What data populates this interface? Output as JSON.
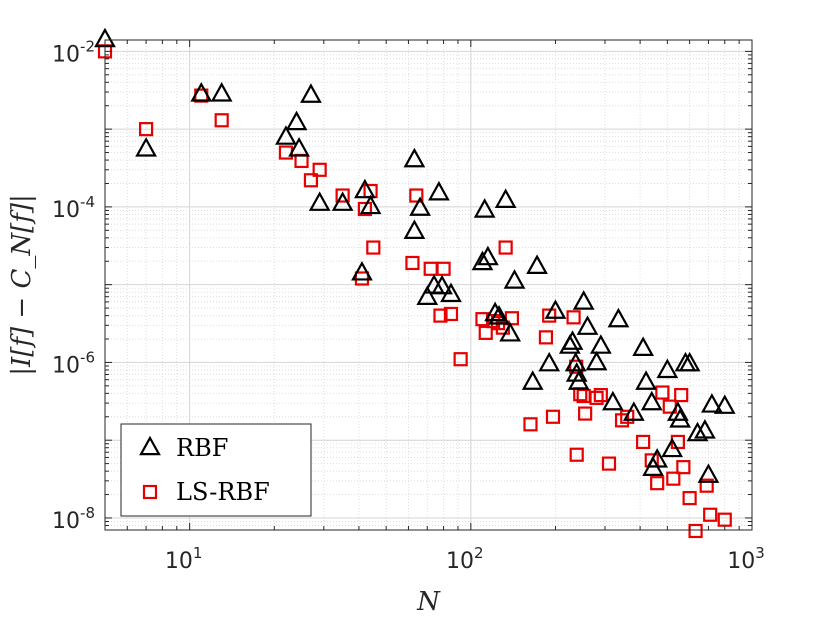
{
  "chart_data": {
    "type": "scatter",
    "xscale": "log",
    "yscale": "log",
    "xlim": [
      5,
      1000
    ],
    "ylim": [
      7e-09,
      0.014
    ],
    "xticks": [
      10,
      100,
      1000
    ],
    "xtick_labels": [
      {
        "base": "10",
        "exp": "1"
      },
      {
        "base": "10",
        "exp": "2"
      },
      {
        "base": "10",
        "exp": "3"
      }
    ],
    "yticks": [
      1e-08,
      1e-06,
      0.0001,
      0.01
    ],
    "ytick_labels": [
      {
        "base": "10",
        "exp": "-8"
      },
      {
        "base": "10",
        "exp": "-6"
      },
      {
        "base": "10",
        "exp": "-4"
      },
      {
        "base": "10",
        "exp": "-2"
      }
    ],
    "xlabel": "N",
    "ylabel": "|I[f] − C_N[f]|",
    "grid": true,
    "legend_position": "bottom-left",
    "series": [
      {
        "name": "RBF",
        "marker": "triangle",
        "color": "#000000",
        "points": [
          [
            5,
            0.014
          ],
          [
            7,
            0.00055
          ],
          [
            11,
            0.0028
          ],
          [
            13,
            0.0028
          ],
          [
            22,
            0.00078
          ],
          [
            24,
            0.0012
          ],
          [
            24.5,
            0.00055
          ],
          [
            27,
            0.0027
          ],
          [
            29,
            0.00011
          ],
          [
            35,
            0.00011
          ],
          [
            41,
            1.4e-05
          ],
          [
            42,
            0.00016
          ],
          [
            44,
            0.0001
          ],
          [
            63,
            0.0004
          ],
          [
            63,
            4.8e-05
          ],
          [
            66,
            9.5e-05
          ],
          [
            70,
            6.8e-06
          ],
          [
            74,
            9.5e-06
          ],
          [
            77,
            0.00015
          ],
          [
            79,
            9.3e-06
          ],
          [
            85,
            7.4e-06
          ],
          [
            110,
            1.9e-05
          ],
          [
            112,
            9e-05
          ],
          [
            115,
            2.2e-05
          ],
          [
            122,
            4.2e-06
          ],
          [
            126,
            3.8e-06
          ],
          [
            133,
            0.00012
          ],
          [
            138,
            2.3e-06
          ],
          [
            143,
            1.1e-05
          ],
          [
            166,
            5.5e-07
          ],
          [
            172,
            1.7e-05
          ],
          [
            190,
            9.5e-07
          ],
          [
            200,
            4.5e-06
          ],
          [
            225,
            1.6e-06
          ],
          [
            230,
            1.8e-06
          ],
          [
            236,
            9.5e-07
          ],
          [
            238,
            7e-07
          ],
          [
            242,
            5.5e-07
          ],
          [
            252,
            5.9e-06
          ],
          [
            260,
            2.8e-06
          ],
          [
            280,
            9.8e-07
          ],
          [
            290,
            1.6e-06
          ],
          [
            320,
            3e-07
          ],
          [
            335,
            3.5e-06
          ],
          [
            380,
            2.2e-07
          ],
          [
            410,
            1.5e-06
          ],
          [
            420,
            5.5e-07
          ],
          [
            440,
            3e-07
          ],
          [
            445,
            4.3e-08
          ],
          [
            460,
            5.5e-08
          ],
          [
            500,
            7.8e-07
          ],
          [
            520,
            7.5e-08
          ],
          [
            545,
            2.2e-07
          ],
          [
            555,
            1.8e-07
          ],
          [
            580,
            9.5e-07
          ],
          [
            600,
            9.5e-07
          ],
          [
            640,
            1.2e-07
          ],
          [
            680,
            1.3e-07
          ],
          [
            700,
            3.5e-08
          ],
          [
            720,
            2.8e-07
          ],
          [
            800,
            2.7e-07
          ]
        ]
      },
      {
        "name": "LS-RBF",
        "marker": "square",
        "color": "#e60000",
        "points": [
          [
            5,
            0.01
          ],
          [
            7,
            0.001
          ],
          [
            11,
            0.0027
          ],
          [
            13,
            0.0013
          ],
          [
            22,
            0.0005
          ],
          [
            25,
            0.00039
          ],
          [
            27,
            0.00022
          ],
          [
            29,
            0.0003
          ],
          [
            35,
            0.00014
          ],
          [
            41,
            1.2e-05
          ],
          [
            42,
            9.4e-05
          ],
          [
            44,
            0.00016
          ],
          [
            45,
            3e-05
          ],
          [
            62,
            1.9e-05
          ],
          [
            64,
            0.00014
          ],
          [
            72,
            1.6e-05
          ],
          [
            80,
            1.6e-05
          ],
          [
            78,
            4e-06
          ],
          [
            85,
            4.2e-06
          ],
          [
            92,
            1.1e-06
          ],
          [
            110,
            3.6e-06
          ],
          [
            113,
            2.4e-06
          ],
          [
            120,
            3.4e-06
          ],
          [
            125,
            3.2e-06
          ],
          [
            130,
            2.8e-06
          ],
          [
            133,
            3e-05
          ],
          [
            140,
            3.7e-06
          ],
          [
            163,
            1.6e-07
          ],
          [
            185,
            2.1e-06
          ],
          [
            190,
            4e-06
          ],
          [
            196,
            2e-07
          ],
          [
            232,
            3.8e-06
          ],
          [
            237,
            8.8e-07
          ],
          [
            238,
            6.5e-08
          ],
          [
            245,
            3.9e-07
          ],
          [
            252,
            3.7e-07
          ],
          [
            255,
            2.2e-07
          ],
          [
            280,
            3.5e-07
          ],
          [
            290,
            3.8e-07
          ],
          [
            310,
            5e-08
          ],
          [
            345,
            1.8e-07
          ],
          [
            360,
            2e-07
          ],
          [
            410,
            9.5e-08
          ],
          [
            440,
            5.5e-08
          ],
          [
            460,
            2.8e-08
          ],
          [
            480,
            4.1e-07
          ],
          [
            510,
            2.7e-07
          ],
          [
            525,
            3.2e-08
          ],
          [
            545,
            9.5e-08
          ],
          [
            560,
            3.8e-07
          ],
          [
            570,
            4.5e-08
          ],
          [
            600,
            1.8e-08
          ],
          [
            630,
            6.8e-09
          ],
          [
            690,
            2.6e-08
          ],
          [
            710,
            1.1e-08
          ],
          [
            800,
            9.5e-09
          ]
        ]
      }
    ]
  }
}
